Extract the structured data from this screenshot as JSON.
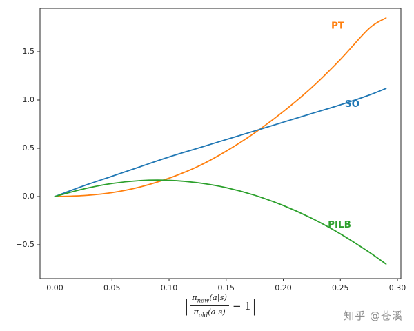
{
  "chart_data": {
    "type": "line",
    "title": "",
    "xlabel": "|pi_new(a|s)/pi_old(a|s) - 1|",
    "ylabel": "",
    "grid": false,
    "legend_position": "inline-annotations",
    "xlim": [
      -0.013,
      0.303
    ],
    "ylim": [
      -0.85,
      1.95
    ],
    "x_ticks": [
      0.0,
      0.05,
      0.1,
      0.15,
      0.2,
      0.25,
      0.3
    ],
    "x_tick_labels": [
      "0.00",
      "0.05",
      "0.10",
      "0.15",
      "0.20",
      "0.25",
      "0.30"
    ],
    "y_ticks": [
      -0.5,
      0.0,
      0.5,
      1.0,
      1.5
    ],
    "y_tick_labels": [
      "−0.5",
      "0.0",
      "0.5",
      "1.0",
      "1.5"
    ],
    "x": [
      0,
      0.025,
      0.05,
      0.075,
      0.1,
      0.125,
      0.15,
      0.175,
      0.2,
      0.225,
      0.25,
      0.275,
      0.29
    ],
    "series": [
      {
        "name": "PT",
        "color": "#ff7f0e",
        "values": [
          0,
          0.01,
          0.04,
          0.1,
          0.19,
          0.31,
          0.47,
          0.66,
          0.88,
          1.13,
          1.42,
          1.74,
          1.85
        ],
        "label_pos": [
          0.242,
          1.74
        ]
      },
      {
        "name": "SO",
        "color": "#1f77b4",
        "values": [
          0,
          0.11,
          0.21,
          0.31,
          0.41,
          0.5,
          0.59,
          0.68,
          0.77,
          0.86,
          0.95,
          1.05,
          1.12
        ],
        "label_pos": [
          0.254,
          0.93
        ]
      },
      {
        "name": "PILB",
        "color": "#2ca02c",
        "values": [
          0.0,
          0.078,
          0.135,
          0.165,
          0.168,
          0.143,
          0.092,
          0.013,
          -0.093,
          -0.226,
          -0.387,
          -0.575,
          -0.7
        ],
        "label_pos": [
          0.239,
          -0.32
        ]
      }
    ]
  },
  "xlabel_math": {
    "open_bar": "|",
    "pi": "π",
    "num_sub": "new",
    "num_args": "(a|s)",
    "den_sub": "old",
    "den_args": "(a|s)",
    "minus": "− 1",
    "close_bar": "|"
  },
  "watermark": {
    "text": "知乎 @苍溪"
  }
}
